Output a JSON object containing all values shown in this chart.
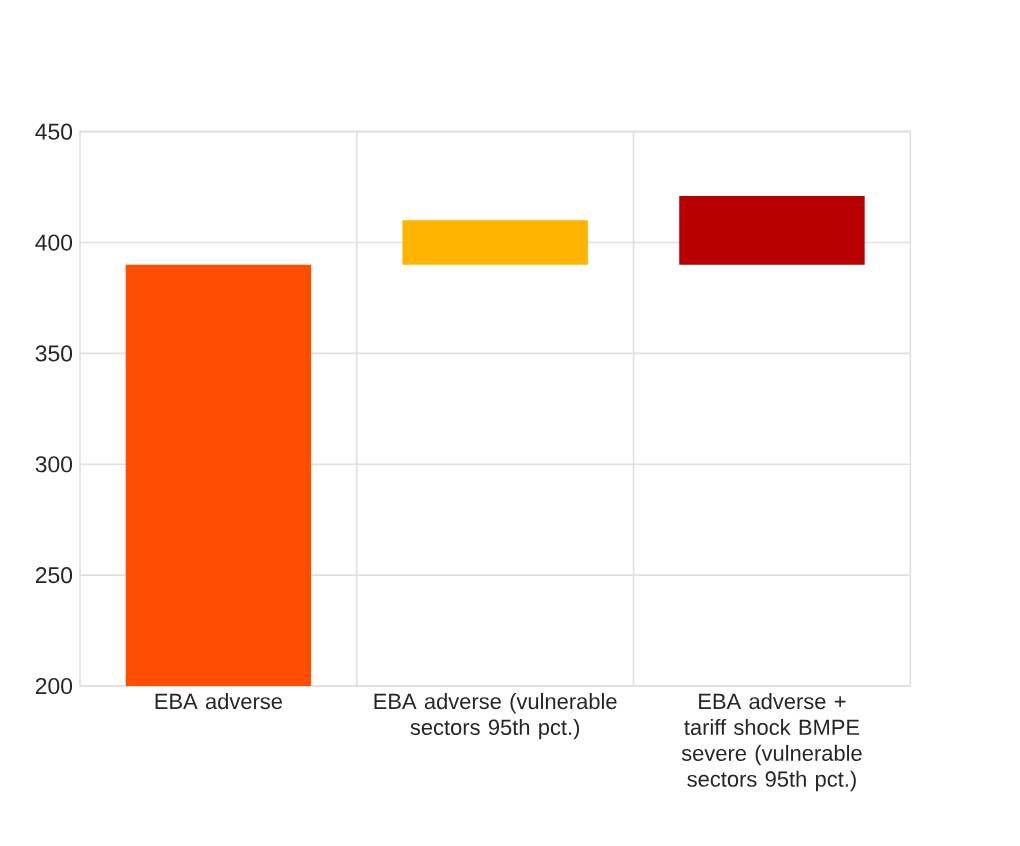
{
  "chart_data": {
    "type": "bar",
    "categories": [
      "EBA adverse",
      "EBA adverse (vulnerable sectors 95th pct.)",
      "EBA adverse + tariff shock BMPE severe (vulnerable sectors 95th pct.)"
    ],
    "base": [
      200,
      390,
      390
    ],
    "values": [
      190,
      20,
      31
    ],
    "colors": [
      "#ff4e00",
      "#ffb400",
      "#b80000"
    ],
    "ylim": [
      200,
      450
    ],
    "yticks": [
      200,
      250,
      300,
      350,
      400,
      450
    ],
    "grid": true
  }
}
